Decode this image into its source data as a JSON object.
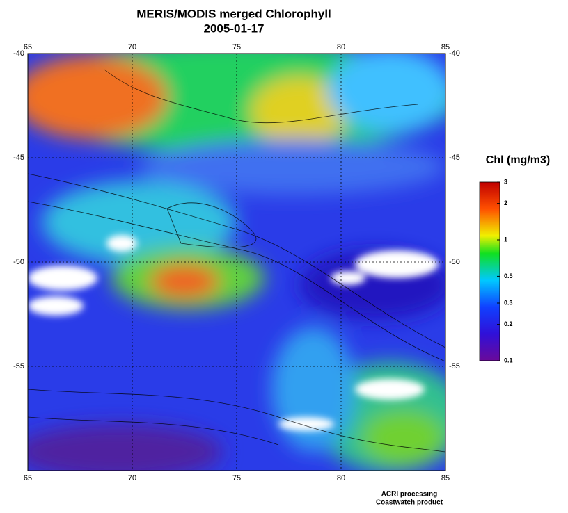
{
  "map": {
    "title": "MERIS/MODIS merged Chlorophyll",
    "date": "2005-01-17",
    "lon_lim": [
      65,
      85
    ],
    "lon_ticks": [
      65,
      70,
      75,
      80,
      85
    ],
    "lat_lim": [
      -40,
      -60
    ],
    "lat_ticks": [
      -40,
      -45,
      -50,
      -55
    ],
    "colorbar": {
      "label": "Chl (mg/m3)",
      "lim": [
        0.1,
        3
      ],
      "log": true,
      "ticks": [
        3,
        2,
        1,
        0.5,
        0.3,
        0.2,
        0.1
      ]
    },
    "credits": [
      "ACRI processing",
      "Coastwatch product"
    ]
  }
}
